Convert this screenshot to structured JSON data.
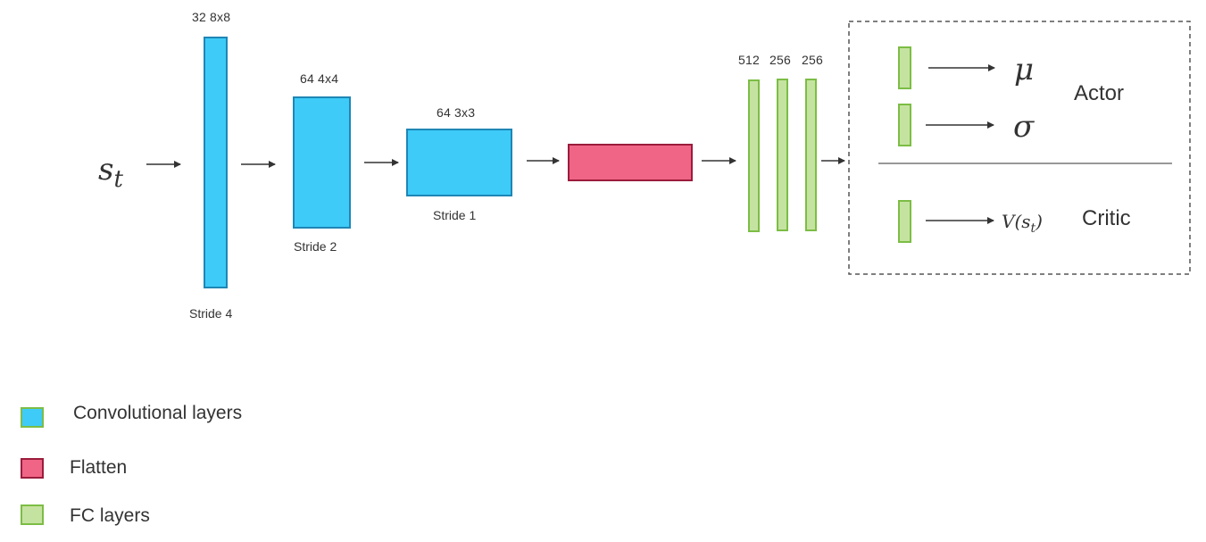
{
  "input": {
    "symbol": "s",
    "subscript": "t"
  },
  "conv_layers": [
    {
      "dims": "32  8x8",
      "stride": "Stride 4"
    },
    {
      "dims": "64  4x4",
      "stride": "Stride 2"
    },
    {
      "dims": "64  3x3",
      "stride": "Stride 1"
    }
  ],
  "fc_layers": {
    "sizes": [
      "512",
      "256",
      "256"
    ]
  },
  "heads": {
    "actor_label": "Actor",
    "critic_label": "Critic",
    "mu": "μ",
    "sigma": "σ",
    "value": {
      "prefix": "V(",
      "symbol": "s",
      "subscript": "t",
      "suffix": ")"
    }
  },
  "legend": [
    {
      "label": "Convolutional layers",
      "color": "#3ecbf8"
    },
    {
      "label": "Flatten",
      "color": "#f06586"
    },
    {
      "label": "FC layers",
      "color": "#c5e3a0"
    }
  ],
  "colors": {
    "conv_fill": "#3ecbf8",
    "conv_border": "#1f86b5",
    "flatten_fill": "#f06586",
    "flatten_border": "#9b1c3c",
    "fc_fill": "#c5e3a0",
    "fc_border": "#7cbd45"
  }
}
